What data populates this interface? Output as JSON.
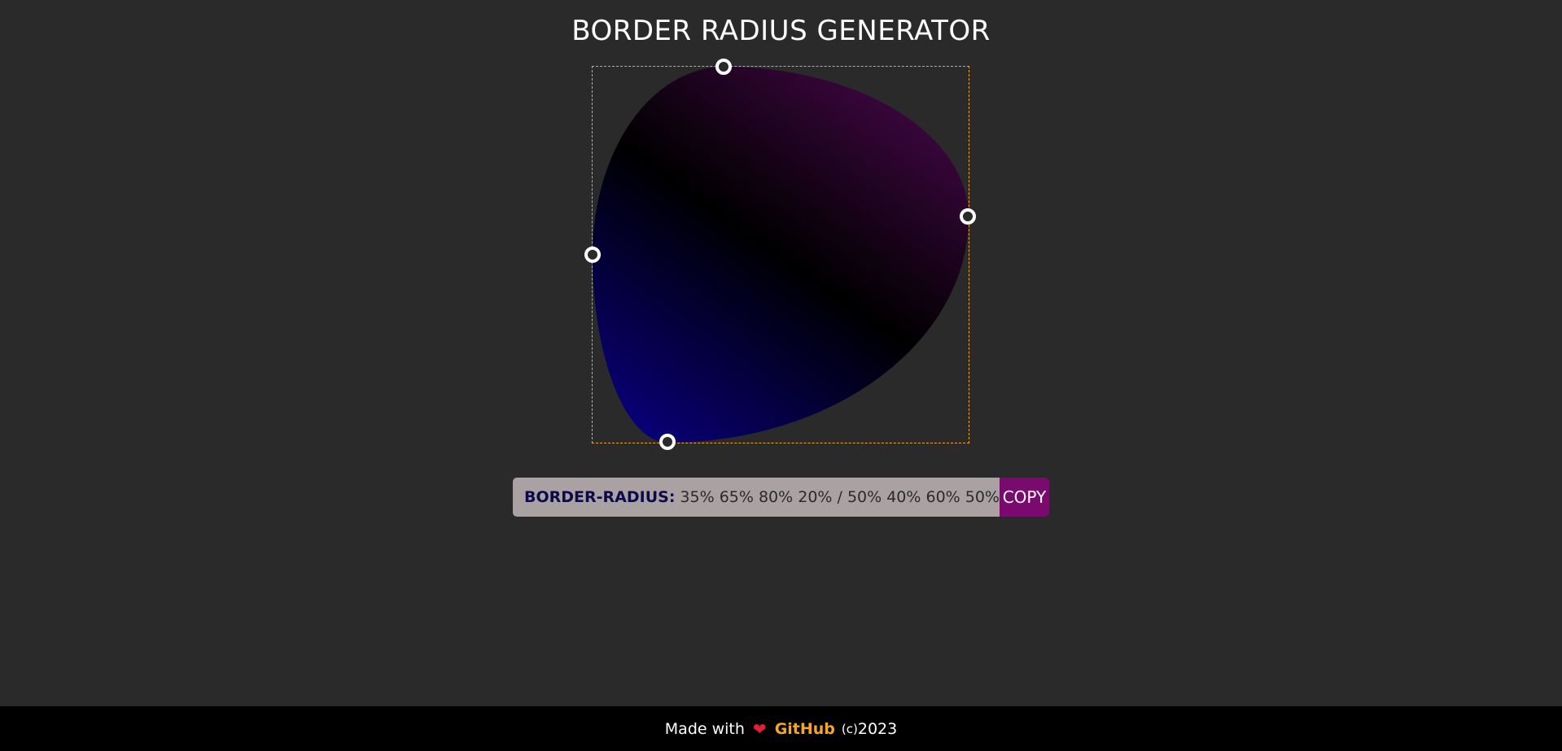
{
  "header": {
    "title": "BORDER RADIUS GENERATOR"
  },
  "editor": {
    "border_radius_percent": {
      "top_left_horizontal": 35,
      "top_right_horizontal": 65,
      "bottom_right_horizontal": 80,
      "bottom_left_horizontal": 20,
      "top_left_vertical": 50,
      "top_right_vertical": 40,
      "bottom_right_vertical": 60,
      "bottom_left_vertical": 50
    },
    "handles": [
      "top-handle",
      "right-handle",
      "bottom-handle",
      "left-handle"
    ],
    "gradient_colors": [
      "#0a0088",
      "#000000",
      "#4e0852"
    ],
    "frame_color": "#f5a623"
  },
  "output": {
    "label": "BORDER-RADIUS:",
    "value": "35% 65% 80% 20% / 50% 40% 60% 50%",
    "copy_label": "COPY"
  },
  "footer": {
    "made_with": "Made with",
    "heart_icon": "heart-icon",
    "github_label": "GitHub",
    "copyright_symbol": "(c)",
    "year": "2023"
  },
  "colors": {
    "background": "#2a2a2a",
    "accent": "#f5a623",
    "copy_button": "#7a0a6e",
    "output_background": "#aaa2a2"
  }
}
